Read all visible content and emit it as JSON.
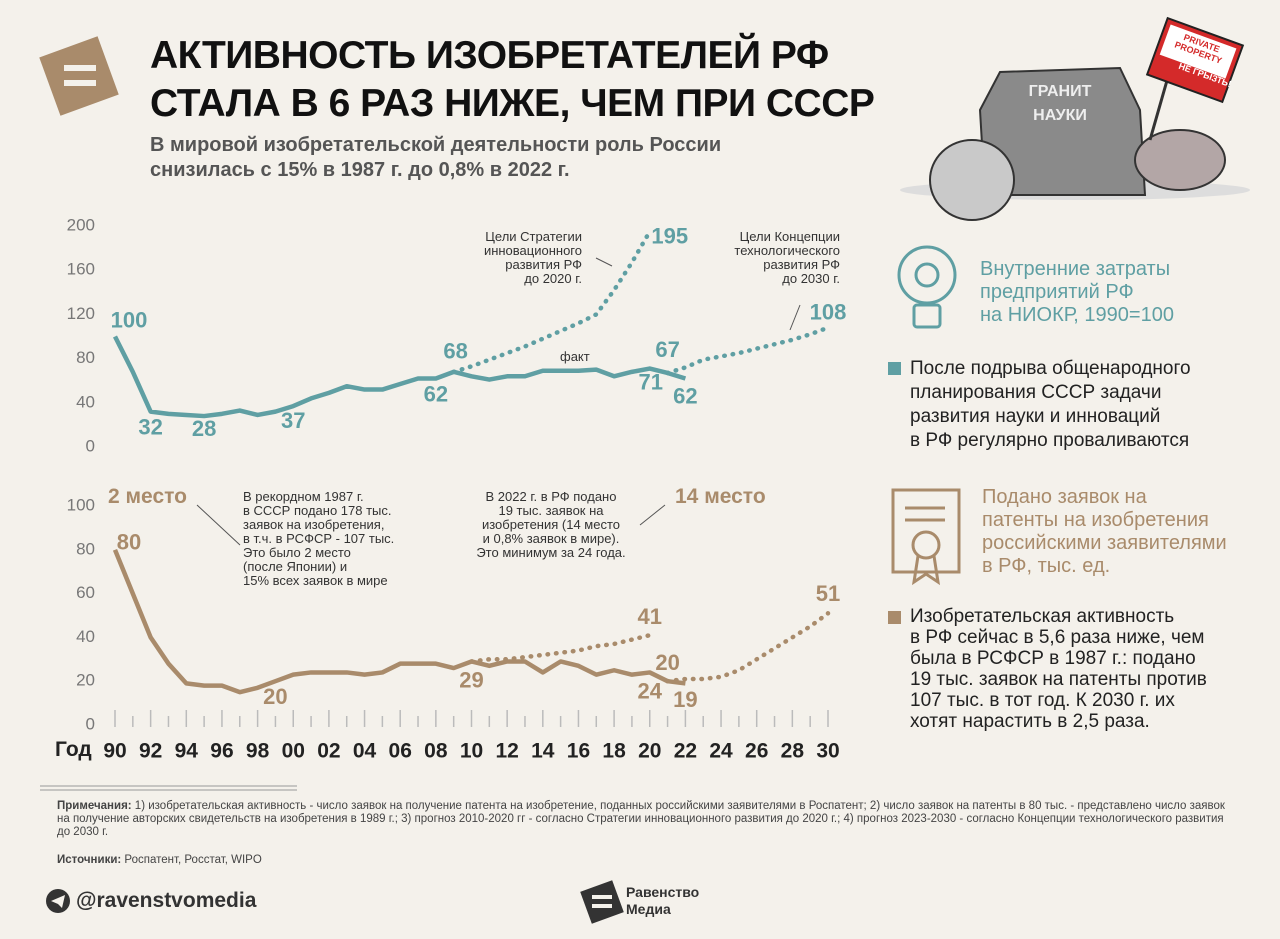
{
  "header": {
    "title": "АКТИВНОСТЬ ИЗОБРЕТАТЕЛЕЙ РФ\nСТАЛА В 6 РАЗ НИЖЕ, ЧЕМ ПРИ СССР",
    "subtitle": "В мировой изобретательской деятельности роль России\nснизилась с 15% в 1987 г. до 0,8% в 2022 г."
  },
  "image_text": {
    "rock": "ГРАНИТ\nНАУКИ",
    "sign_top": "PRIVATE\nPROPERTY",
    "sign_bottom": "НЕ ГРЫЗТЬ!"
  },
  "chart_data": [
    {
      "type": "line",
      "title": "Внутренние затраты\nпредприятий РФ\nна НИОКР, 1990=100",
      "note": "После подрыва общенародного\nпланирования СССР задачи\nразвития науки и инноваций\nв РФ регулярно проваливаются",
      "color": "#5f9fa3",
      "xlim": [
        1990,
        2030
      ],
      "ylim": [
        0,
        200
      ],
      "yticks": [
        0,
        40,
        80,
        120,
        160,
        200
      ],
      "series": [
        {
          "name": "факт",
          "color": "#5f9fa3",
          "style": "solid",
          "x": [
            1990,
            1991,
            1992,
            1993,
            1994,
            1995,
            1996,
            1997,
            1998,
            1999,
            2000,
            2001,
            2002,
            2003,
            2004,
            2005,
            2006,
            2007,
            2008,
            2009,
            2010,
            2011,
            2012,
            2013,
            2014,
            2015,
            2016,
            2017,
            2018,
            2019,
            2020,
            2021,
            2022
          ],
          "values": [
            100,
            68,
            32,
            30,
            29,
            28,
            30,
            33,
            29,
            32,
            37,
            44,
            49,
            55,
            52,
            52,
            57,
            62,
            62,
            68,
            64,
            61,
            64,
            64,
            69,
            69,
            69,
            70,
            64,
            68,
            71,
            67,
            62
          ]
        },
        {
          "name": "Цели Стратегии\nинновационного\nразвития РФ\nдо 2020 г.",
          "color": "#5f9fa3",
          "style": "dotted",
          "x": [
            2009,
            2010,
            2011,
            2012,
            2013,
            2014,
            2015,
            2016,
            2017,
            2018,
            2019,
            2020
          ],
          "values": [
            68,
            73,
            79,
            85,
            91,
            98,
            105,
            112,
            120,
            142,
            167,
            195
          ]
        },
        {
          "name": "Цели Концепции\nтехнологического\nразвития РФ\nдо 2030 г.",
          "color": "#5f9fa3",
          "style": "dotted",
          "x": [
            2021,
            2022,
            2023,
            2024,
            2025,
            2026,
            2027,
            2028,
            2029,
            2030
          ],
          "values": [
            67,
            72,
            79,
            82,
            85,
            89,
            93,
            97,
            102,
            108
          ]
        }
      ]
    },
    {
      "type": "line",
      "title": "Подано заявок на\nпатенты на изобретения\nроссийскими заявителями\nв РФ, тыс. ед.",
      "note": "Изобретательская активность\nв РФ сейчас в 5,6 раза ниже, чем\nбыла в РСФСР в 1987 г.: подано\n19 тыс. заявок на патенты против\n107 тыс. в тот год. К 2030 г. их\nхотят нарастить в 2,5 раза.",
      "color": "#a98b6b",
      "xlabel": "Год",
      "xlim": [
        1990,
        2030
      ],
      "xticks": [
        {
          "value": 1990,
          "label": "90"
        },
        {
          "value": 1992,
          "label": "92"
        },
        {
          "value": 1994,
          "label": "94"
        },
        {
          "value": 1996,
          "label": "96"
        },
        {
          "value": 1998,
          "label": "98"
        },
        {
          "value": 2000,
          "label": "00"
        },
        {
          "value": 2002,
          "label": "02"
        },
        {
          "value": 2004,
          "label": "04"
        },
        {
          "value": 2006,
          "label": "06"
        },
        {
          "value": 2008,
          "label": "08"
        },
        {
          "value": 2010,
          "label": "10"
        },
        {
          "value": 2012,
          "label": "12"
        },
        {
          "value": 2014,
          "label": "14"
        },
        {
          "value": 2016,
          "label": "16"
        },
        {
          "value": 2018,
          "label": "18"
        },
        {
          "value": 2020,
          "label": "20"
        },
        {
          "value": 2022,
          "label": "22"
        },
        {
          "value": 2024,
          "label": "24"
        },
        {
          "value": 2026,
          "label": "26"
        },
        {
          "value": 2028,
          "label": "28"
        },
        {
          "value": 2030,
          "label": "30"
        }
      ],
      "xminorticks": [
        1991,
        1993,
        1995,
        1997,
        1999,
        2001,
        2003,
        2005,
        2007,
        2009,
        2011,
        2013,
        2015,
        2017,
        2019,
        2021,
        2023,
        2025,
        2027,
        2029
      ],
      "ylim": [
        0,
        100
      ],
      "yticks": [
        0,
        20,
        40,
        60,
        80,
        100
      ],
      "annotations": [
        {
          "label": "2 место",
          "text": "В рекордном 1987 г.\nв СССР подано 178 тыс.\nзаявок на изобретения,\nв т.ч. в РСФСР - 107 тыс.\nЭто было 2 место\n(после Японии) и\n15% всех заявок в мире"
        },
        {
          "label": "14 место",
          "text": "В 2022 г. в РФ подано\n19 тыс. заявок на\nизобретения (14 место\nи 0,8% заявок в мире).\nЭто минимум за 24 года."
        }
      ],
      "series": [
        {
          "color": "#a98b6b",
          "style": "solid",
          "x": [
            1990,
            1991,
            1992,
            1993,
            1994,
            1995,
            1996,
            1997,
            1998,
            1999,
            2000,
            2001,
            2002,
            2003,
            2004,
            2005,
            2006,
            2007,
            2008,
            2009,
            2010,
            2011,
            2012,
            2013,
            2014,
            2015,
            2016,
            2017,
            2018,
            2019,
            2020,
            2021,
            2022
          ],
          "values": [
            80,
            60,
            40,
            28,
            19,
            18,
            18,
            15,
            17,
            20,
            23,
            24,
            24,
            24,
            23,
            24,
            28,
            28,
            28,
            26,
            29,
            27,
            29,
            29,
            24,
            29,
            27,
            23,
            25,
            23,
            24,
            20,
            19
          ]
        },
        {
          "color": "#a98b6b",
          "style": "dotted",
          "x": [
            2010,
            2011,
            2012,
            2013,
            2014,
            2015,
            2016,
            2017,
            2018,
            2019,
            2020
          ],
          "values": [
            29,
            30,
            30,
            31,
            32,
            33,
            34,
            36,
            37,
            39,
            41
          ]
        },
        {
          "color": "#a98b6b",
          "style": "dotted",
          "x": [
            2021,
            2022,
            2023,
            2024,
            2025,
            2026,
            2027,
            2028,
            2029,
            2030
          ],
          "values": [
            20,
            21,
            21,
            22,
            25,
            30,
            35,
            40,
            45,
            51
          ]
        }
      ]
    }
  ],
  "footer": {
    "notes_label": "Примечания:",
    "notes": " 1) изобретательская активность - число заявок на получение патента на изобретение, поданных российскими заявителями в Роспатент; 2) число заявок на патенты в 80 тыс. - представлено число заявок на получение авторских свидетельств на изобретения в 1989 г.; 3) прогноз 2010-2020 гг - согласно Стратегии инновационного развития до 2020 г.; 4) прогноз 2023-2030 - согласно Концепции технологического развития до 2030 г.",
    "sources_label": "Источники:",
    "sources": " Роспатент, Росстат, WIPO",
    "handle": "@ravenstvomedia",
    "logo": "Равенство\nМедиа"
  }
}
